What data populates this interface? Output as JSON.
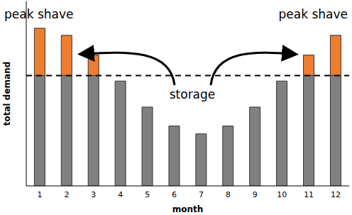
{
  "chart_data": {
    "type": "bar",
    "x_label": "month",
    "y_label": "total demand",
    "categories": [
      "1",
      "2",
      "3",
      "4",
      "5",
      "6",
      "7",
      "8",
      "9",
      "10",
      "11",
      "12"
    ],
    "stacked": true,
    "series": [
      {
        "color": "#808080",
        "values": [
          70,
          70,
          70,
          66.5,
          50,
          38,
          33,
          38,
          50,
          66.5,
          70,
          70
        ]
      },
      {
        "color": "#ed7d31",
        "values": [
          30,
          25.5,
          13,
          null,
          null,
          null,
          null,
          null,
          null,
          null,
          13,
          25.5
        ]
      }
    ],
    "threshold": 70,
    "ylim": [
      0,
      117
    ],
    "tick_labels": "x",
    "annotations": [
      "peak shave",
      "peak shave",
      "storage"
    ]
  }
}
